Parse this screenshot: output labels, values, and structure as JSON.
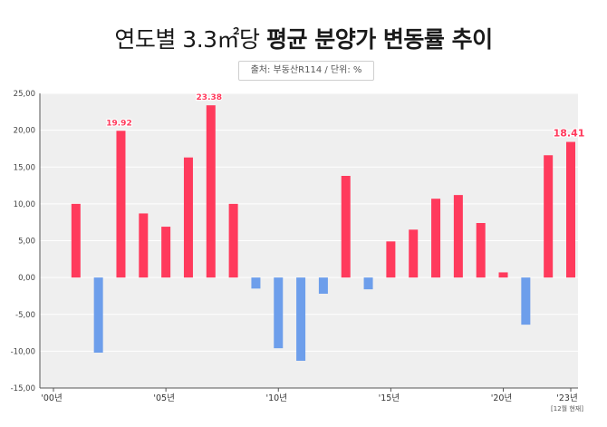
{
  "title": {
    "light": "연도별 3.3㎡당",
    "bold": "평균 분양가 변동률 추이"
  },
  "source_note": "출처: 부동산R114 / 단위: %",
  "colors": {
    "positive": "#ff3a5c",
    "negative": "#6d9eeb",
    "plot_bg": "#efefef",
    "grid": "#ffffff",
    "axis": "#555555"
  },
  "chart_data": {
    "type": "bar",
    "title": "연도별 3.3㎡당 평균 분양가 변동률 추이",
    "xlabel": "",
    "ylabel": "%",
    "ylim": [
      -15,
      25
    ],
    "y_ticks": [
      25,
      20,
      15,
      10,
      5,
      0,
      -5,
      -10,
      -15
    ],
    "y_tick_labels": [
      "25,00",
      "20,00",
      "15,00",
      "10,00",
      "5,00",
      "0,00",
      "-5,00",
      "-10,00",
      "-15,00"
    ],
    "x": [
      2000,
      2001,
      2002,
      2003,
      2004,
      2005,
      2006,
      2007,
      2008,
      2009,
      2010,
      2011,
      2012,
      2013,
      2014,
      2015,
      2016,
      2017,
      2018,
      2019,
      2020,
      2021,
      2022,
      2023
    ],
    "values": [
      0,
      10.0,
      -10.2,
      19.92,
      8.7,
      6.9,
      16.3,
      23.38,
      10.0,
      -1.5,
      -9.6,
      -11.3,
      -2.2,
      13.8,
      -1.6,
      4.9,
      6.5,
      10.7,
      11.2,
      7.4,
      0.7,
      -6.4,
      16.6,
      18.41
    ],
    "x_tick_labels": [
      {
        "year": 2000,
        "label": "'00년"
      },
      {
        "year": 2005,
        "label": "'05년"
      },
      {
        "year": 2010,
        "label": "'10년"
      },
      {
        "year": 2015,
        "label": "'15년"
      },
      {
        "year": 2020,
        "label": "'20년"
      },
      {
        "year": 2023,
        "label": "'23년"
      }
    ],
    "footnote": "[12월 현재]",
    "data_labels": [
      {
        "year": 2003,
        "text": "19.92"
      },
      {
        "year": 2007,
        "text": "23.38"
      },
      {
        "year": 2023,
        "text": "18.41"
      }
    ]
  }
}
